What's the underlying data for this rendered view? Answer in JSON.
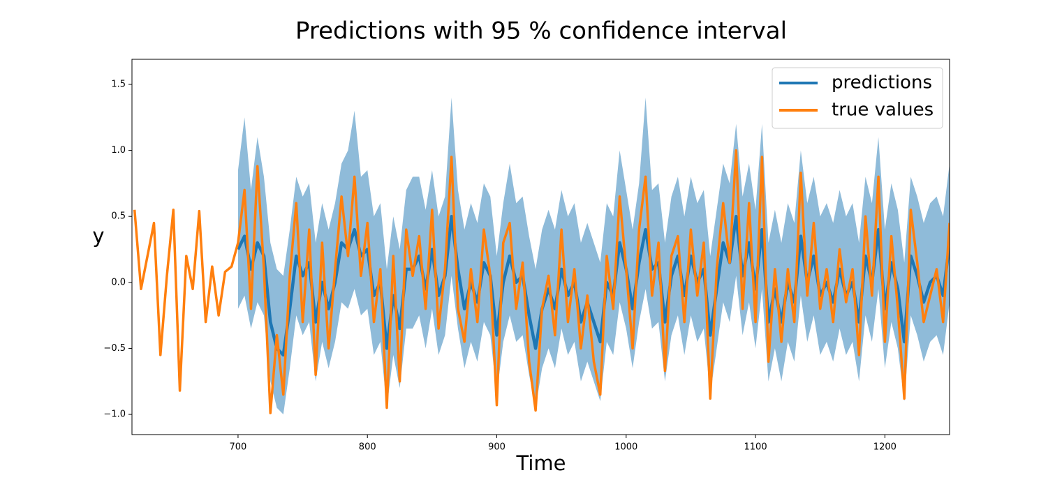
{
  "chart_data": {
    "type": "line",
    "title": "Predictions with 95 % confidence interval",
    "x_label": "Time",
    "y_label": "y",
    "x": [
      620,
      625,
      630,
      635,
      640,
      645,
      650,
      655,
      660,
      665,
      670,
      675,
      680,
      685,
      690,
      695,
      700,
      705,
      710,
      715,
      720,
      725,
      730,
      735,
      740,
      745,
      750,
      755,
      760,
      765,
      770,
      775,
      780,
      785,
      790,
      795,
      800,
      805,
      810,
      815,
      820,
      825,
      830,
      835,
      840,
      845,
      850,
      855,
      860,
      865,
      870,
      875,
      880,
      885,
      890,
      895,
      900,
      905,
      910,
      915,
      920,
      925,
      930,
      935,
      940,
      945,
      950,
      955,
      960,
      965,
      970,
      975,
      980,
      985,
      990,
      995,
      1000,
      1005,
      1010,
      1015,
      1020,
      1025,
      1030,
      1035,
      1040,
      1045,
      1050,
      1055,
      1060,
      1065,
      1070,
      1075,
      1080,
      1085,
      1090,
      1095,
      1100,
      1105,
      1110,
      1115,
      1120,
      1125,
      1130,
      1135,
      1140,
      1145,
      1150,
      1155,
      1160,
      1165,
      1170,
      1175,
      1180,
      1185,
      1190,
      1195,
      1200,
      1205,
      1210,
      1215,
      1220,
      1225,
      1230,
      1235,
      1240,
      1245,
      1250
    ],
    "band": {
      "color": "#1f77b4",
      "opacity": 0.5,
      "lower": [
        null,
        null,
        null,
        null,
        null,
        null,
        null,
        null,
        null,
        null,
        null,
        null,
        null,
        null,
        null,
        null,
        -0.2,
        -0.1,
        -0.35,
        -0.15,
        -0.25,
        -0.75,
        -0.95,
        -1.0,
        -0.65,
        -0.25,
        -0.4,
        -0.3,
        -0.75,
        -0.45,
        -0.65,
        -0.45,
        -0.15,
        -0.2,
        -0.05,
        -0.25,
        -0.2,
        -0.55,
        -0.45,
        -0.95,
        -0.55,
        -0.8,
        -0.35,
        -0.35,
        -0.25,
        -0.5,
        -0.2,
        -0.55,
        -0.4,
        0.05,
        -0.35,
        -0.65,
        -0.45,
        -0.6,
        -0.3,
        -0.4,
        -0.85,
        -0.45,
        -0.25,
        -0.45,
        -0.4,
        -0.7,
        -0.95,
        -0.65,
        -0.5,
        -0.65,
        -0.35,
        -0.55,
        -0.45,
        -0.75,
        -0.6,
        -0.75,
        -0.9,
        -0.45,
        -0.55,
        -0.15,
        -0.35,
        -0.65,
        -0.3,
        -0.05,
        -0.35,
        -0.3,
        -0.75,
        -0.4,
        -0.25,
        -0.55,
        -0.25,
        -0.45,
        -0.35,
        -0.85,
        -0.5,
        -0.15,
        -0.3,
        0.05,
        -0.4,
        -0.15,
        -0.5,
        -0.05,
        -0.75,
        -0.5,
        -0.75,
        -0.45,
        -0.6,
        -0.1,
        -0.45,
        -0.25,
        -0.55,
        -0.45,
        -0.6,
        -0.35,
        -0.55,
        -0.45,
        -0.75,
        -0.25,
        -0.45,
        -0.05,
        -0.65,
        -0.3,
        -0.5,
        -0.9,
        -0.25,
        -0.4,
        -0.6,
        -0.45,
        -0.4,
        -0.55,
        -0.15
      ],
      "upper": [
        null,
        null,
        null,
        null,
        null,
        null,
        null,
        null,
        null,
        null,
        null,
        null,
        null,
        null,
        null,
        null,
        0.85,
        1.25,
        0.7,
        1.1,
        0.8,
        0.3,
        0.1,
        0.05,
        0.4,
        0.8,
        0.65,
        0.75,
        0.3,
        0.6,
        0.4,
        0.6,
        0.9,
        1.0,
        1.3,
        0.8,
        0.85,
        0.5,
        0.6,
        0.1,
        0.5,
        0.25,
        0.7,
        0.8,
        0.8,
        0.55,
        0.85,
        0.5,
        0.65,
        1.4,
        0.7,
        0.4,
        0.6,
        0.45,
        0.75,
        0.65,
        0.2,
        0.6,
        0.9,
        0.6,
        0.65,
        0.35,
        0.1,
        0.4,
        0.55,
        0.4,
        0.7,
        0.5,
        0.6,
        0.3,
        0.45,
        0.3,
        0.15,
        0.6,
        0.5,
        1.0,
        0.7,
        0.4,
        0.75,
        1.4,
        0.7,
        0.75,
        0.3,
        0.65,
        0.8,
        0.5,
        0.8,
        0.6,
        0.7,
        0.2,
        0.55,
        0.9,
        0.75,
        1.2,
        0.65,
        0.9,
        0.55,
        1.2,
        0.3,
        0.55,
        0.3,
        0.6,
        0.45,
        1.0,
        0.6,
        0.8,
        0.5,
        0.6,
        0.45,
        0.7,
        0.5,
        0.6,
        0.3,
        0.8,
        0.6,
        1.1,
        0.4,
        0.75,
        0.55,
        0.15,
        0.8,
        0.65,
        0.45,
        0.6,
        0.65,
        0.5,
        0.9
      ]
    },
    "series": [
      {
        "name": "predictions",
        "color": "#1f77b4",
        "width": 4.5,
        "values": [
          null,
          null,
          null,
          null,
          null,
          null,
          null,
          null,
          null,
          null,
          null,
          null,
          null,
          null,
          null,
          null,
          0.25,
          0.35,
          0.1,
          0.3,
          0.2,
          -0.3,
          -0.5,
          -0.55,
          -0.2,
          0.2,
          0.05,
          0.15,
          -0.3,
          0.0,
          -0.2,
          0.0,
          0.3,
          0.25,
          0.4,
          0.2,
          0.25,
          -0.1,
          0.0,
          -0.5,
          -0.1,
          -0.35,
          0.1,
          0.1,
          0.2,
          -0.05,
          0.25,
          -0.1,
          0.05,
          0.5,
          0.1,
          -0.2,
          0.0,
          -0.15,
          0.15,
          0.05,
          -0.4,
          0.0,
          0.2,
          0.0,
          0.05,
          -0.25,
          -0.5,
          -0.2,
          -0.05,
          -0.2,
          0.1,
          -0.1,
          0.0,
          -0.3,
          -0.15,
          -0.3,
          -0.45,
          0.0,
          -0.1,
          0.3,
          0.1,
          -0.2,
          0.15,
          0.4,
          0.1,
          0.15,
          -0.3,
          0.05,
          0.2,
          -0.1,
          0.2,
          0.0,
          0.1,
          -0.4,
          -0.05,
          0.3,
          0.15,
          0.5,
          0.05,
          0.3,
          -0.05,
          0.4,
          -0.3,
          -0.05,
          -0.3,
          0.0,
          -0.15,
          0.35,
          0.0,
          0.2,
          -0.1,
          0.0,
          -0.15,
          0.1,
          -0.1,
          0.0,
          -0.3,
          0.2,
          0.0,
          0.4,
          -0.2,
          0.15,
          -0.05,
          -0.45,
          0.2,
          0.05,
          -0.15,
          0.0,
          0.05,
          -0.1,
          0.3
        ]
      },
      {
        "name": "true values",
        "color": "#ff7f0e",
        "width": 3.5,
        "values": [
          0.55,
          -0.05,
          0.2,
          0.45,
          -0.55,
          0.05,
          0.55,
          -0.82,
          0.2,
          -0.05,
          0.54,
          -0.3,
          0.12,
          -0.25,
          0.08,
          0.12,
          0.3,
          0.7,
          -0.2,
          0.88,
          0.1,
          -0.99,
          -0.4,
          -0.85,
          0.05,
          0.6,
          -0.3,
          0.4,
          -0.7,
          0.3,
          -0.5,
          0.1,
          0.65,
          0.2,
          0.8,
          0.05,
          0.45,
          -0.3,
          0.1,
          -0.95,
          0.2,
          -0.75,
          0.4,
          0.05,
          0.35,
          -0.2,
          0.55,
          -0.35,
          0.1,
          0.95,
          -0.2,
          -0.45,
          0.1,
          -0.3,
          0.4,
          0.05,
          -0.93,
          0.3,
          0.45,
          -0.2,
          0.15,
          -0.6,
          -0.97,
          -0.2,
          0.05,
          -0.4,
          0.4,
          -0.3,
          0.1,
          -0.5,
          -0.1,
          -0.6,
          -0.85,
          0.2,
          -0.2,
          0.65,
          0.1,
          -0.5,
          0.4,
          0.8,
          -0.1,
          0.3,
          -0.67,
          0.2,
          0.35,
          -0.3,
          0.4,
          -0.1,
          0.3,
          -0.88,
          0.1,
          0.6,
          0.15,
          1.0,
          -0.2,
          0.6,
          -0.3,
          0.95,
          -0.6,
          0.1,
          -0.45,
          0.1,
          -0.3,
          0.83,
          -0.1,
          0.45,
          -0.2,
          0.1,
          -0.3,
          0.25,
          -0.15,
          0.1,
          -0.55,
          0.5,
          -0.1,
          0.8,
          -0.45,
          0.35,
          -0.2,
          -0.88,
          0.55,
          0.15,
          -0.3,
          -0.1,
          0.1,
          -0.3,
          0.45
        ]
      }
    ],
    "xlim": [
      618,
      1250
    ],
    "ylim": [
      -1.153,
      1.69
    ],
    "xticks": [
      700,
      800,
      900,
      1000,
      1100,
      1200
    ],
    "yticks": [
      1.5,
      {
        "value": 1.0,
        "label": "1.0"
      },
      0.5,
      {
        "value": 0.0,
        "label": "0.0"
      },
      {
        "value": -0.5,
        "label": "−0.5"
      },
      {
        "value": -1.0,
        "label": "−1.0"
      }
    ],
    "legend": "upper right"
  }
}
